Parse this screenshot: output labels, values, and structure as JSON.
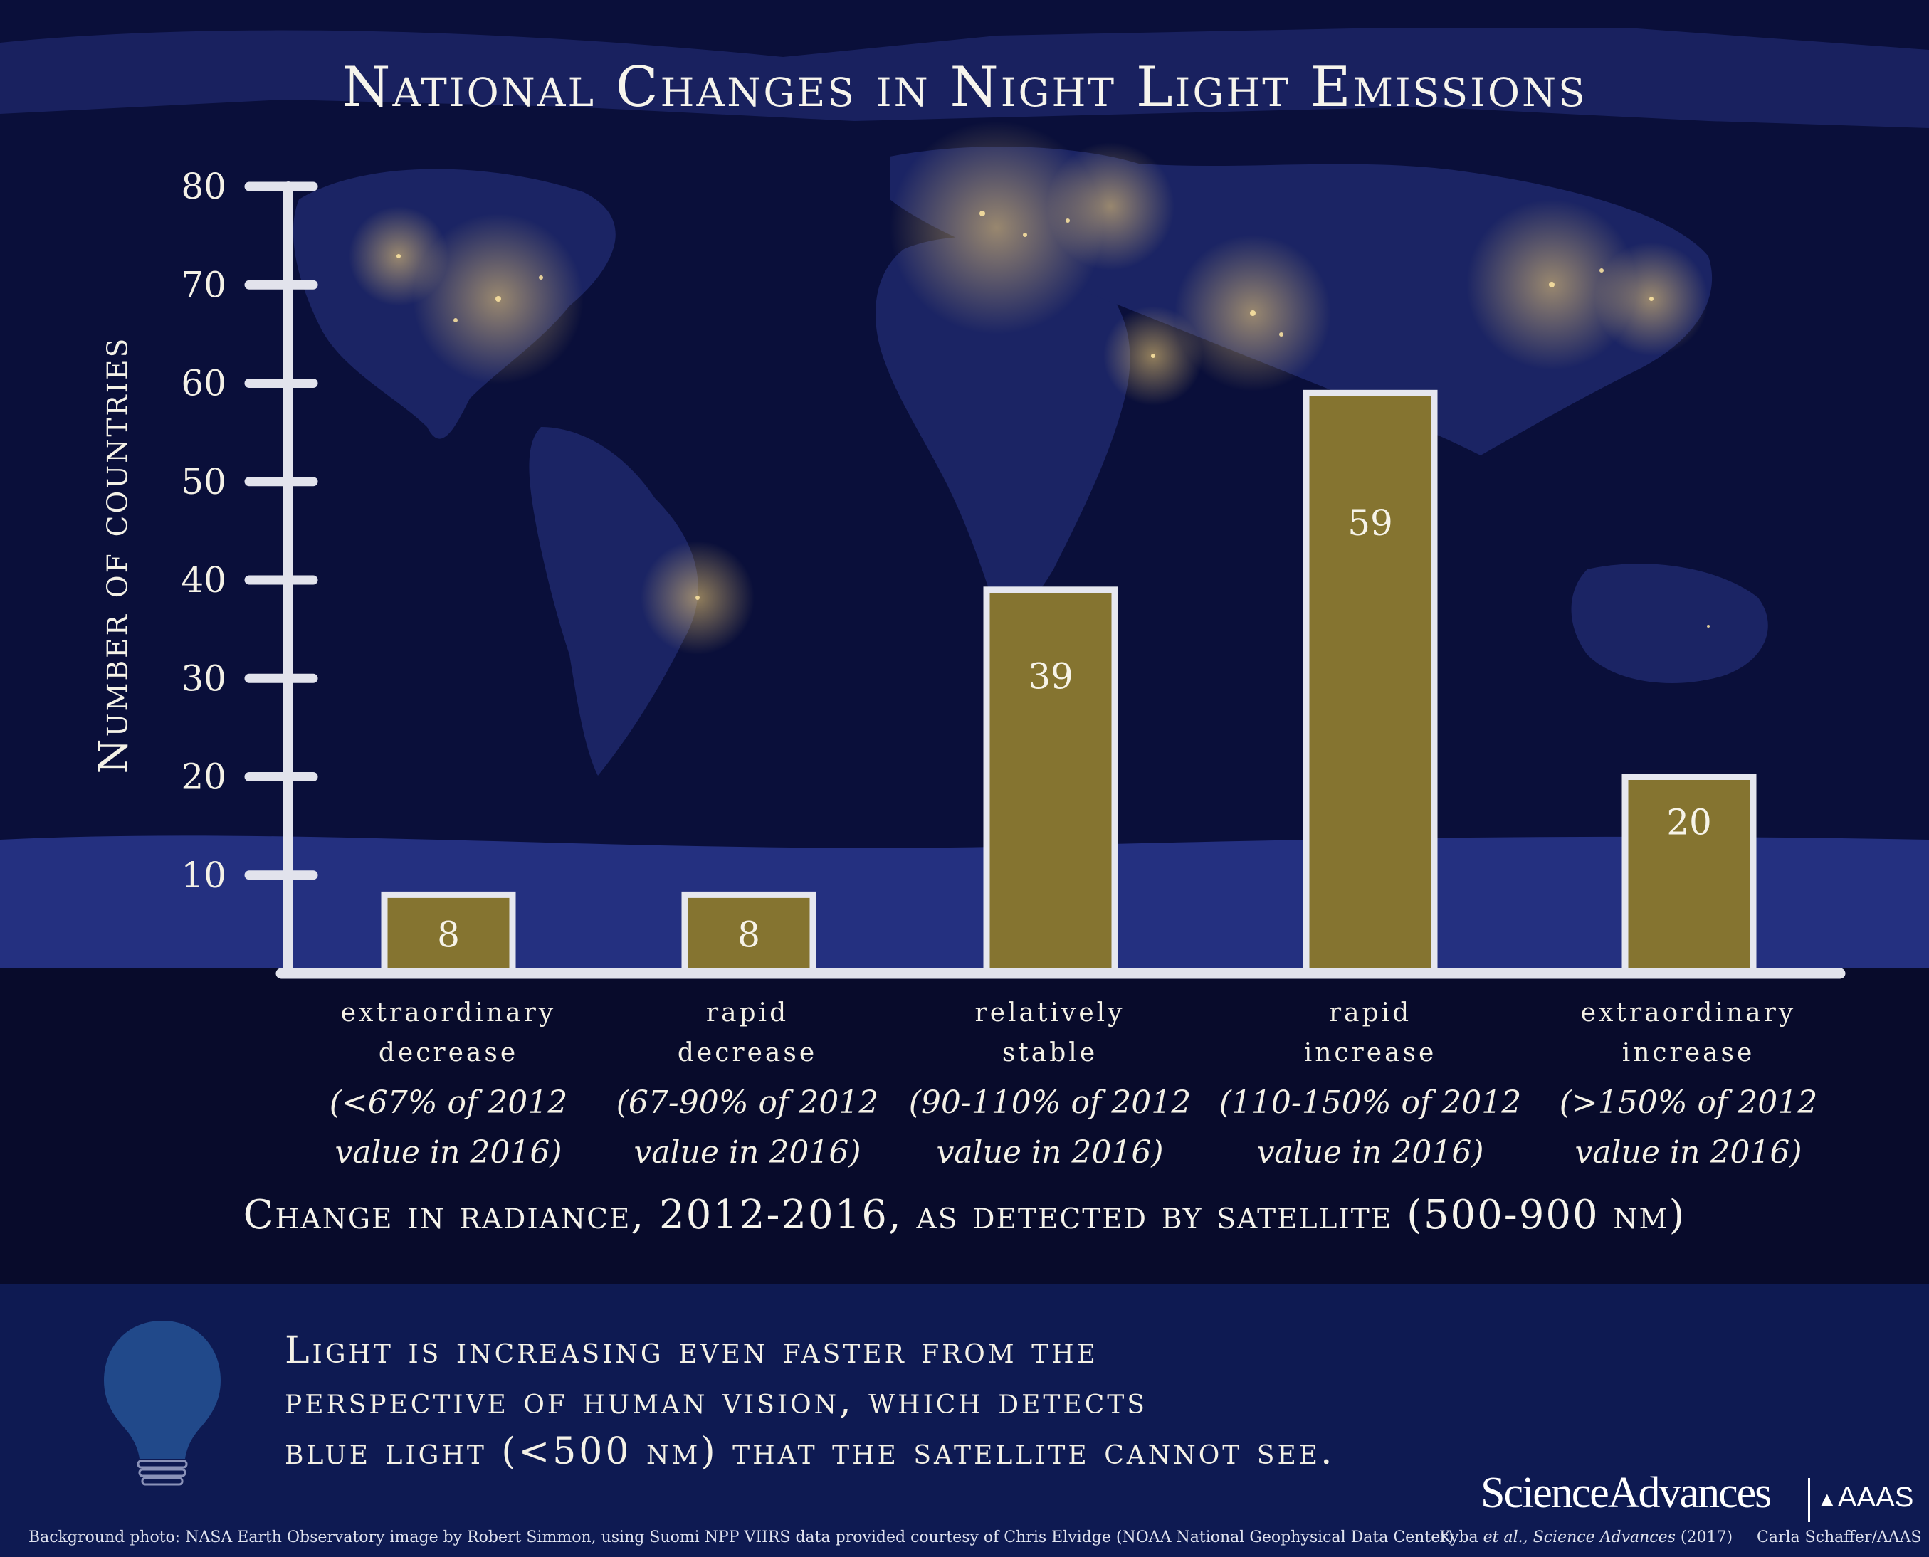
{
  "title": "National Changes in Night Light Emissions",
  "chart_data": {
    "type": "bar",
    "title": "National Changes in Night Light Emissions",
    "ylabel": "Number of countries",
    "xlabel": "Change in radiance, 2012-2016, as detected by satellite (500-900 nm)",
    "ylim": [
      0,
      80
    ],
    "yticks": [
      10,
      20,
      30,
      40,
      50,
      60,
      70,
      80
    ],
    "grid": false,
    "categories": [
      {
        "line1": "extraordinary",
        "line2": "decrease",
        "note1": "(<67% of 2012",
        "note2": "value in 2016)"
      },
      {
        "line1": "rapid",
        "line2": "decrease",
        "note1": "(67-90% of 2012",
        "note2": "value in 2016)"
      },
      {
        "line1": "relatively",
        "line2": "stable",
        "note1": "(90-110% of 2012",
        "note2": "value in 2016)"
      },
      {
        "line1": "rapid",
        "line2": "increase",
        "note1": "(110-150% of 2012",
        "note2": "value in 2016)"
      },
      {
        "line1": "extraordinary",
        "line2": "increase",
        "note1": "(>150% of 2012",
        "note2": "value in 2016)"
      }
    ],
    "values": [
      8,
      8,
      39,
      59,
      20
    ],
    "bar_color": "#857430",
    "bar_border_color": "#e6e7ef",
    "axis_color": "#e2e3ec"
  },
  "note_lines": [
    "Light is increasing even faster from the",
    "perspective of human vision, which detects",
    "blue light (<500 nm) that the satellite cannot see."
  ],
  "credit": "Background photo: NASA Earth Observatory image by Robert Simmon, using Suomi NPP VIIRS data provided courtesy of Chris Elvidge (NOAA National Geophysical Data Center)",
  "citation_prefix": "Kyba ",
  "citation_et_al": "et al.",
  "citation_journal": ", Science Advances",
  "citation_year": " (2017)",
  "author": "Carla Schaffer/AAAS",
  "logo": {
    "science_advances": "ScienceAdvances",
    "aaas": "AAAS"
  },
  "icons": {
    "bulb": "lightbulb-icon"
  }
}
